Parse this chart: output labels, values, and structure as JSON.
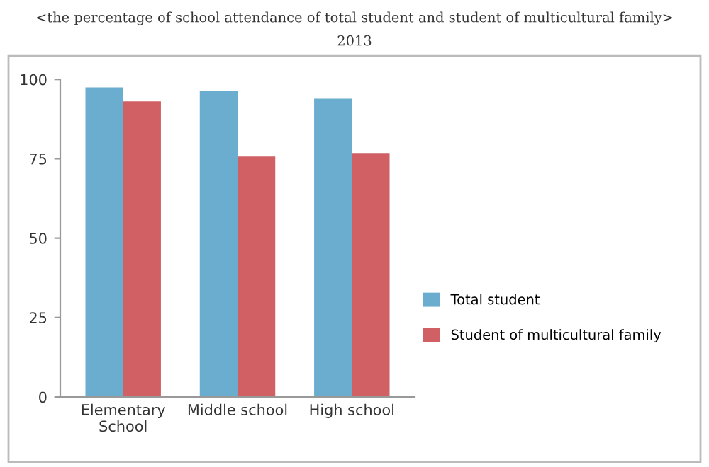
{
  "chart_data": {
    "type": "bar",
    "title": "<the percentage of school attendance of total student and student of multicultural family>",
    "subtitle": "2013",
    "categories": [
      "Elementary\nSchool",
      "Middle school",
      "High school"
    ],
    "series": [
      {
        "name": "Total student",
        "color": "#6aadcf",
        "values": [
          97.5,
          96.3,
          93.9
        ]
      },
      {
        "name": "Student of multicultural family",
        "color": "#d06064",
        "values": [
          93.1,
          75.7,
          76.8
        ]
      }
    ],
    "ylim": [
      0,
      100
    ],
    "yticks": [
      0,
      25,
      50,
      75,
      100
    ],
    "grid": false,
    "legend": "right"
  }
}
